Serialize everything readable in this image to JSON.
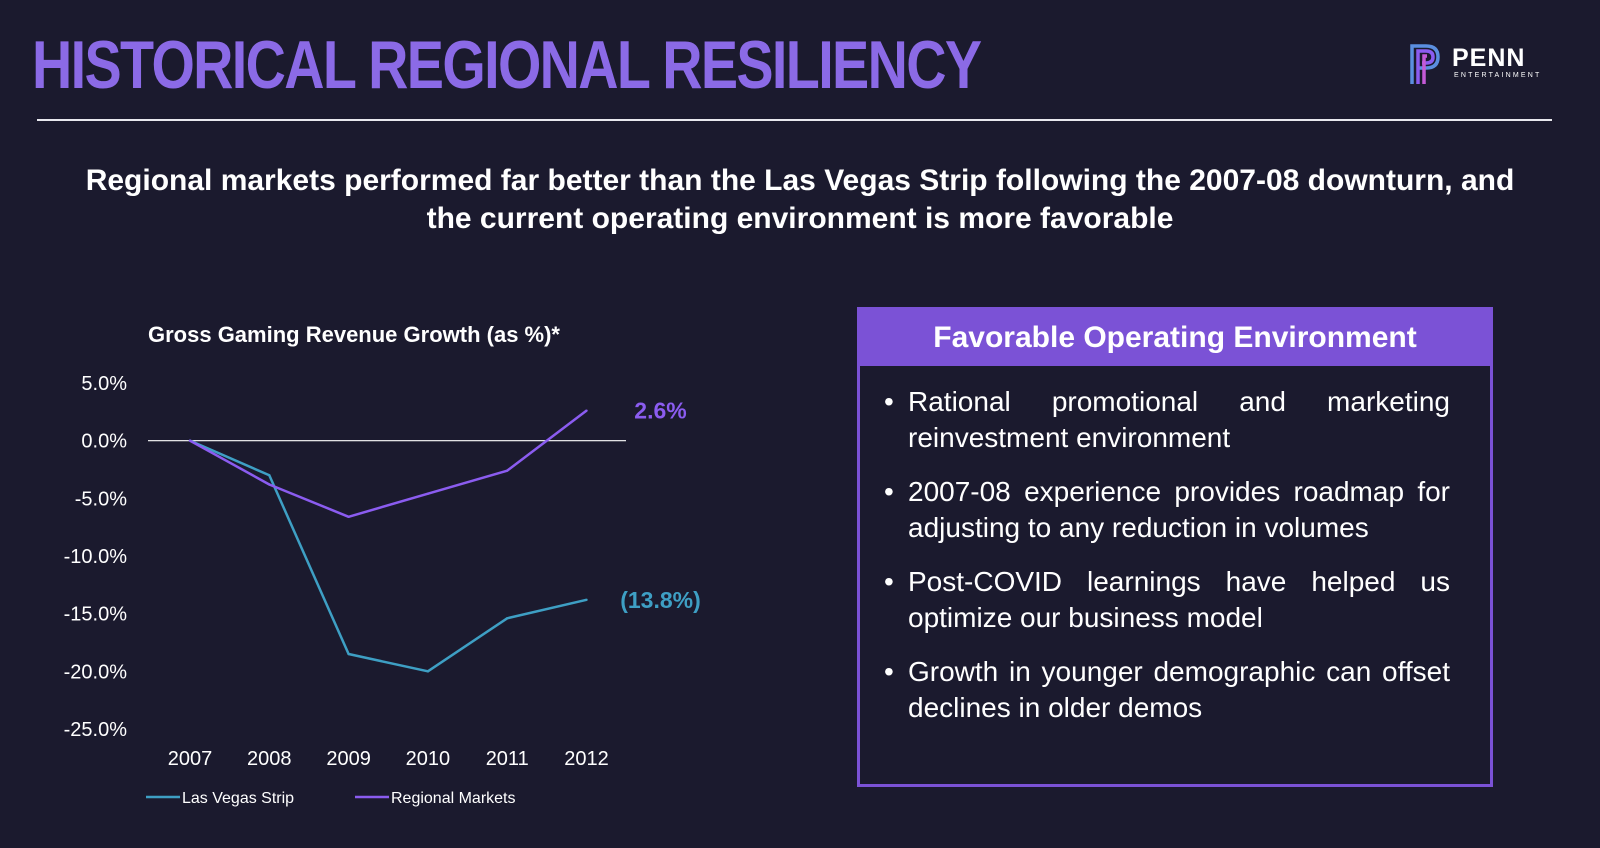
{
  "slide": {
    "title": "HISTORICAL REGIONAL RESILIENCY",
    "subtitle": "Regional markets performed far better than the Las Vegas Strip following the 2007-08 downturn, and the current operating environment is more favorable"
  },
  "logo": {
    "name": "PENN",
    "tagline": "ENTERTAINMENT",
    "colors": [
      "#5b8fe0",
      "#8b5cf0",
      "#c45ad6"
    ]
  },
  "colors": {
    "background": "#1b1a2e",
    "title": "#8b6ae6",
    "accent": "#7b52d6",
    "las_vegas": "#3e9fc4",
    "regional": "#8b5cf0"
  },
  "panel": {
    "header": "Favorable Operating Environment",
    "bullet_glyph": "•",
    "items": [
      "Rational promotional and marketing reinvestment environment",
      "2007-08 experience provides roadmap for adjusting to any reduction in volumes",
      "Post-COVID learnings have helped us optimize our business model",
      "Growth in younger demographic can offset declines in older demos"
    ]
  },
  "chart_data": {
    "type": "line",
    "title": "Gross Gaming Revenue Growth (as %)*",
    "categories": [
      "2007",
      "2008",
      "2009",
      "2010",
      "2011",
      "2012"
    ],
    "y_ticks": [
      "5.0%",
      "0.0%",
      "-5.0%",
      "-10.0%",
      "-15.0%",
      "-20.0%",
      "-25.0%"
    ],
    "ylim": [
      -25,
      5
    ],
    "grid": false,
    "legend_position": "bottom",
    "series": [
      {
        "name": "Las Vegas Strip",
        "color": "#3e9fc4",
        "values": [
          0,
          -3,
          -18.5,
          -20,
          -15.4,
          -13.8
        ],
        "end_label": "(13.8%)"
      },
      {
        "name": "Regional Markets",
        "color": "#8b5cf0",
        "values": [
          0,
          -3.8,
          -6.6,
          -4.6,
          -2.6,
          2.6
        ],
        "end_label": "2.6%"
      }
    ]
  }
}
